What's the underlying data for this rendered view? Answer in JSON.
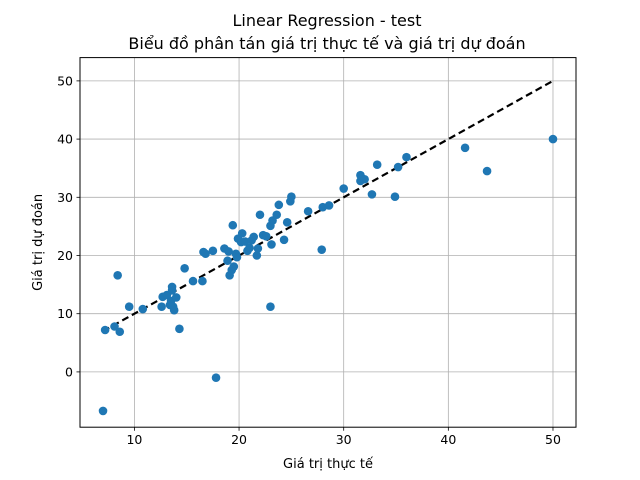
{
  "chart_data": {
    "type": "scatter",
    "title": "Linear Regression - test",
    "subtitle": "Biểu đồ phân tán giá trị thực tế và giá trị dự đoán",
    "xlabel": "Giá trị thực tế",
    "ylabel": "Giá trị dự đoán",
    "xlim": [
      4.8,
      52.2
    ],
    "ylim": [
      -9.5,
      54
    ],
    "xticks": [
      10,
      20,
      30,
      40,
      50
    ],
    "yticks": [
      0,
      10,
      20,
      30,
      40,
      50
    ],
    "grid": true,
    "point_color": "#1f77b4",
    "reference_line": {
      "style": "dashed",
      "color": "#000000",
      "x": [
        7,
        50
      ],
      "y": [
        7,
        50
      ]
    },
    "points": [
      [
        7.0,
        -6.7
      ],
      [
        7.2,
        7.2
      ],
      [
        8.1,
        7.8
      ],
      [
        8.4,
        16.6
      ],
      [
        8.6,
        6.9
      ],
      [
        9.5,
        11.2
      ],
      [
        10.8,
        10.8
      ],
      [
        12.6,
        11.2
      ],
      [
        12.7,
        12.9
      ],
      [
        13.1,
        13.2
      ],
      [
        13.4,
        11.5
      ],
      [
        13.5,
        12.2
      ],
      [
        13.6,
        14.0
      ],
      [
        13.6,
        14.6
      ],
      [
        13.7,
        11.2
      ],
      [
        13.8,
        10.6
      ],
      [
        14.0,
        12.8
      ],
      [
        14.3,
        7.4
      ],
      [
        14.8,
        17.8
      ],
      [
        15.6,
        15.6
      ],
      [
        16.5,
        15.6
      ],
      [
        16.6,
        20.6
      ],
      [
        16.8,
        20.3
      ],
      [
        17.5,
        20.8
      ],
      [
        17.8,
        -1.0
      ],
      [
        18.6,
        21.2
      ],
      [
        18.9,
        19.1
      ],
      [
        19.0,
        20.7
      ],
      [
        19.1,
        16.6
      ],
      [
        19.3,
        17.5
      ],
      [
        19.4,
        25.2
      ],
      [
        19.5,
        18.1
      ],
      [
        19.7,
        20.3
      ],
      [
        19.8,
        19.7
      ],
      [
        19.9,
        22.9
      ],
      [
        20.2,
        22.3
      ],
      [
        20.3,
        23.8
      ],
      [
        20.6,
        22.4
      ],
      [
        20.8,
        20.8
      ],
      [
        21.0,
        21.3
      ],
      [
        21.2,
        22.6
      ],
      [
        21.4,
        23.2
      ],
      [
        21.7,
        20.0
      ],
      [
        21.8,
        21.2
      ],
      [
        22.0,
        27.0
      ],
      [
        22.3,
        23.5
      ],
      [
        22.6,
        23.3
      ],
      [
        23.0,
        11.2
      ],
      [
        23.0,
        25.1
      ],
      [
        23.1,
        21.9
      ],
      [
        23.2,
        26.0
      ],
      [
        23.6,
        27.0
      ],
      [
        23.8,
        28.7
      ],
      [
        24.3,
        22.7
      ],
      [
        24.6,
        25.7
      ],
      [
        24.9,
        29.3
      ],
      [
        25.0,
        30.1
      ],
      [
        26.6,
        27.6
      ],
      [
        27.9,
        21.0
      ],
      [
        28.0,
        28.3
      ],
      [
        28.6,
        28.6
      ],
      [
        30.0,
        31.5
      ],
      [
        31.6,
        32.8
      ],
      [
        31.6,
        33.8
      ],
      [
        32.0,
        33.1
      ],
      [
        32.7,
        30.5
      ],
      [
        33.2,
        35.6
      ],
      [
        34.9,
        30.1
      ],
      [
        35.2,
        35.2
      ],
      [
        36.0,
        36.9
      ],
      [
        41.6,
        38.5
      ],
      [
        43.7,
        34.5
      ],
      [
        50.0,
        40.0
      ]
    ]
  }
}
